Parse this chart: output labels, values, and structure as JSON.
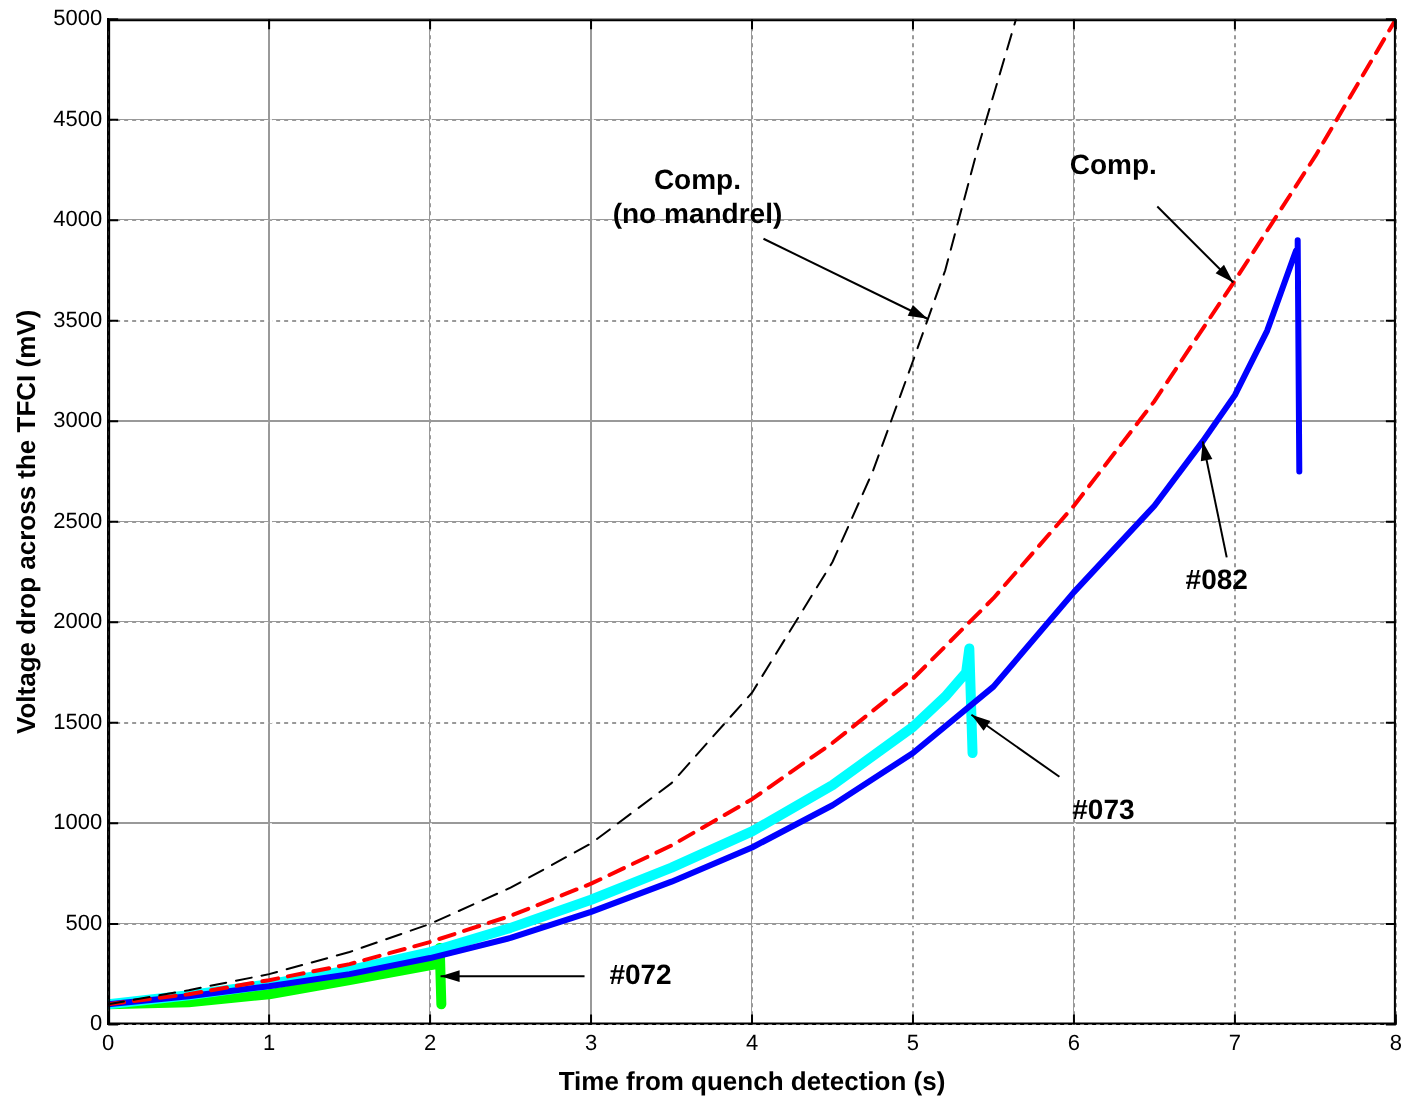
{
  "chart_data": {
    "type": "line",
    "xlabel": "Time from quench detection (s)",
    "ylabel": "Voltage drop across the TFCI (mV)",
    "xlim": [
      0,
      8
    ],
    "xticks": [
      0,
      1,
      2,
      3,
      4,
      5,
      6,
      7,
      8
    ],
    "ylim": [
      0,
      5000
    ],
    "yticks": [
      0,
      500,
      1000,
      1500,
      2000,
      2500,
      3000,
      3500,
      4000,
      4500,
      5000
    ],
    "grid": true,
    "legend": false,
    "marker": "none",
    "series": [
      {
        "color": "#000000",
        "line_style": "dashed",
        "x": [
          0,
          0.5,
          1,
          1.5,
          2,
          2.5,
          3,
          3.5,
          4,
          4.5,
          4.75,
          5,
          5.2,
          5.4,
          5.64
        ],
        "values": [
          100,
          170,
          250,
          360,
          500,
          680,
          900,
          1200,
          1650,
          2300,
          2750,
          3300,
          3750,
          4350,
          5000
        ]
      },
      {
        "color": "#ff0000",
        "line_style": "dashed",
        "x": [
          0,
          0.5,
          1,
          1.5,
          2,
          2.5,
          3,
          3.5,
          4,
          4.5,
          5,
          5.5,
          6,
          6.5,
          7,
          7.5,
          8
        ],
        "values": [
          100,
          150,
          220,
          300,
          410,
          540,
          700,
          890,
          1120,
          1400,
          1720,
          2120,
          2580,
          3100,
          3700,
          4320,
          5000
        ]
      },
      {
        "color": "#0000ff",
        "line_style": "solid",
        "x": [
          0,
          0.5,
          1,
          1.5,
          2,
          2.5,
          3,
          3.5,
          4,
          4.5,
          5,
          5.5,
          6,
          6.5,
          6.8,
          7,
          7.2,
          7.38,
          7.39,
          7.4
        ],
        "values": [
          100,
          140,
          190,
          250,
          330,
          430,
          560,
          710,
          880,
          1090,
          1350,
          1680,
          2150,
          2580,
          2900,
          3130,
          3450,
          3850,
          3900,
          2750
        ]
      },
      {
        "color": "#00ffff",
        "line_style": "solid",
        "x": [
          0,
          0.5,
          1,
          1.5,
          2,
          2.5,
          3,
          3.5,
          4,
          4.5,
          5,
          5.2,
          5.33,
          5.35,
          5.37
        ],
        "values": [
          100,
          145,
          200,
          270,
          360,
          480,
          620,
          780,
          960,
          1190,
          1480,
          1630,
          1750,
          1870,
          1350
        ]
      },
      {
        "color": "#00ff00",
        "line_style": "solid",
        "x": [
          0,
          0.5,
          1,
          1.5,
          2.04,
          2.06,
          2.07
        ],
        "values": [
          100,
          110,
          150,
          220,
          300,
          380,
          100
        ]
      }
    ],
    "annotations": [
      {
        "text": "Comp.\n(no mandrel)",
        "x": 5.09,
        "y": 3510
      },
      {
        "text": "Comp.",
        "x": 6.99,
        "y": 3690
      },
      {
        "text": "#082",
        "x": 6.8,
        "y": 2900
      },
      {
        "text": "#073",
        "x": 5.363,
        "y": 1540
      },
      {
        "text": "#072",
        "x": 2.065,
        "y": 240
      }
    ]
  }
}
